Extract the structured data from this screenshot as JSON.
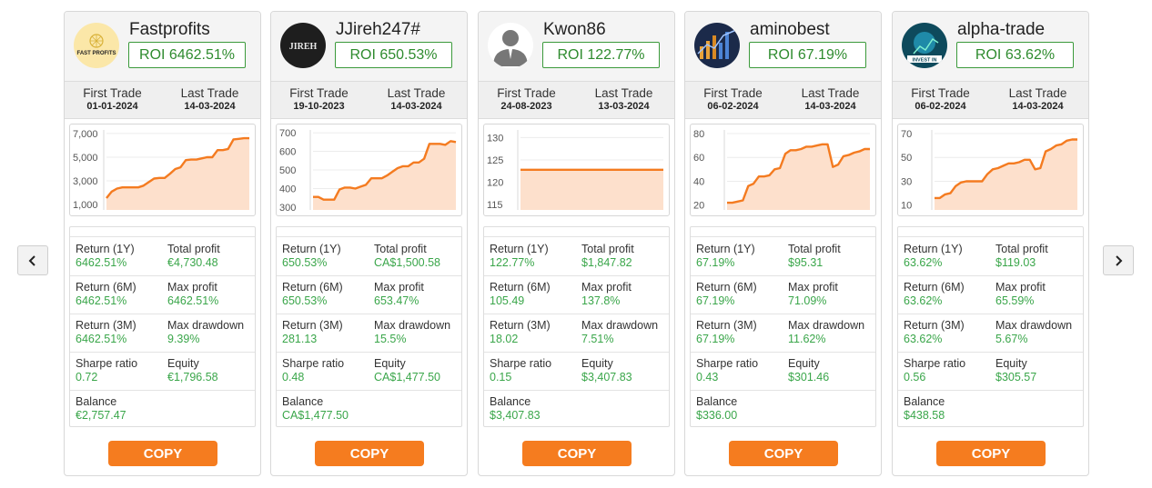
{
  "navigation": {
    "prev_icon": "chevron-left-icon",
    "next_icon": "chevron-right-icon"
  },
  "labels": {
    "first_trade": "First Trade",
    "last_trade": "Last Trade",
    "return_1y": "Return (1Y)",
    "total_profit": "Total profit",
    "return_6m": "Return (6M)",
    "max_profit": "Max profit",
    "return_3m": "Return (3M)",
    "max_drawdown": "Max drawdown",
    "sharpe_ratio": "Sharpe ratio",
    "equity": "Equity",
    "balance": "Balance",
    "copy": "COPY"
  },
  "colors": {
    "accent": "#f57c1f",
    "positive": "#3aa64a",
    "line": "#f47b20",
    "fill": "#fde0cc"
  },
  "traders": [
    {
      "name": "Fastprofits",
      "avatar": "fast-profits-logo",
      "avatar_text": "FAST PROFITS",
      "roi": "ROI 6462.51%",
      "first_trade": "01-01-2024",
      "last_trade": "14-03-2024",
      "stats": {
        "return_1y": "6462.51%",
        "total_profit": "€4,730.48",
        "return_6m": "6462.51%",
        "max_profit": "6462.51%",
        "return_3m": "6462.51%",
        "max_drawdown": "9.39%",
        "sharpe_ratio": "0.72",
        "equity": "€1,796.58",
        "balance": "€2,757.47"
      },
      "chart_data": {
        "type": "area",
        "y_ticks": [
          "7,000",
          "5,000",
          "3,000",
          "1,000"
        ],
        "ylim": [
          550,
          7300
        ],
        "x": [
          0,
          3,
          6,
          9,
          12,
          15,
          18,
          21,
          24,
          27,
          30,
          33,
          36,
          39,
          42,
          45,
          48,
          51,
          54,
          57,
          60,
          63,
          66,
          69,
          72,
          75,
          78,
          81
        ],
        "values": [
          1550,
          2100,
          2350,
          2450,
          2450,
          2450,
          2450,
          2600,
          2900,
          3200,
          3250,
          3250,
          3600,
          4000,
          4150,
          4750,
          4800,
          4800,
          4900,
          5000,
          5000,
          5600,
          5600,
          5700,
          6500,
          6550,
          6600,
          6600
        ]
      }
    },
    {
      "name": "JJireh247#",
      "avatar": "jireh-logo",
      "avatar_text": "JIREH",
      "roi": "ROI 650.53%",
      "first_trade": "19-10-2023",
      "last_trade": "14-03-2024",
      "stats": {
        "return_1y": "650.53%",
        "total_profit": "CA$1,500.58",
        "return_6m": "650.53%",
        "max_profit": "653.47%",
        "return_3m": "281.13",
        "max_drawdown": "15.5%",
        "sharpe_ratio": "0.48",
        "equity": "CA$1,477.50",
        "balance": "CA$1,477.50"
      },
      "chart_data": {
        "type": "area",
        "y_ticks": [
          "700",
          "600",
          "500",
          "400",
          "300"
        ],
        "ylim": [
          285,
          715
        ],
        "x": [
          0,
          3,
          6,
          9,
          12,
          15,
          18,
          21,
          24,
          27,
          30,
          33,
          36,
          39,
          42,
          45,
          48,
          51,
          54,
          57,
          60,
          63,
          66,
          69,
          72,
          75,
          78,
          81
        ],
        "values": [
          355,
          355,
          340,
          340,
          340,
          395,
          405,
          405,
          400,
          410,
          420,
          455,
          455,
          455,
          470,
          490,
          510,
          520,
          520,
          540,
          540,
          560,
          640,
          640,
          640,
          635,
          655,
          650
        ]
      }
    },
    {
      "name": "Kwon86",
      "avatar": "user-silhouette-icon",
      "avatar_text": "",
      "roi": "ROI 122.77%",
      "first_trade": "24-08-2023",
      "last_trade": "13-03-2024",
      "stats": {
        "return_1y": "122.77%",
        "total_profit": "$1,847.82",
        "return_6m": "105.49",
        "max_profit": "137.8%",
        "return_3m": "18.02",
        "max_drawdown": "7.51%",
        "sharpe_ratio": "0.15",
        "equity": "$3,407.83",
        "balance": "$3,407.83"
      },
      "chart_data": {
        "type": "area",
        "y_ticks": [
          "130",
          "125",
          "120",
          "115"
        ],
        "ylim": [
          113.8,
          131.7
        ],
        "x": [
          0,
          81
        ],
        "values": [
          122.8,
          122.8
        ]
      }
    },
    {
      "name": "aminobest",
      "avatar": "trading-chart-avatar",
      "avatar_text": "",
      "roi": "ROI 67.19%",
      "first_trade": "06-02-2024",
      "last_trade": "14-03-2024",
      "stats": {
        "return_1y": "67.19%",
        "total_profit": "$95.31",
        "return_6m": "67.19%",
        "max_profit": "71.09%",
        "return_3m": "67.19%",
        "max_drawdown": "11.62%",
        "sharpe_ratio": "0.43",
        "equity": "$301.46",
        "balance": "$336.00"
      },
      "chart_data": {
        "type": "area",
        "y_ticks": [
          "80",
          "60",
          "40",
          "20"
        ],
        "ylim": [
          16,
          83
        ],
        "x": [
          0,
          3,
          6,
          9,
          12,
          15,
          18,
          21,
          24,
          27,
          30,
          33,
          36,
          39,
          42,
          45,
          48,
          51,
          54,
          57,
          60,
          63,
          66,
          69,
          72,
          75,
          78,
          81
        ],
        "values": [
          22,
          22,
          23,
          24,
          36,
          38,
          44,
          44,
          45,
          50,
          51,
          63,
          66,
          66,
          67,
          69,
          69,
          70,
          71,
          71,
          52,
          54,
          61,
          62,
          64,
          65,
          67,
          67
        ]
      }
    },
    {
      "name": "alpha-trade",
      "avatar": "invest-in-avatar",
      "avatar_text": "INVEST IN",
      "roi": "ROI 63.62%",
      "first_trade": "06-02-2024",
      "last_trade": "14-03-2024",
      "stats": {
        "return_1y": "63.62%",
        "total_profit": "$119.03",
        "return_6m": "63.62%",
        "max_profit": "65.59%",
        "return_3m": "63.62%",
        "max_drawdown": "5.67%",
        "sharpe_ratio": "0.56",
        "equity": "$305.57",
        "balance": "$438.58"
      },
      "chart_data": {
        "type": "area",
        "y_ticks": [
          "70",
          "50",
          "30",
          "10"
        ],
        "ylim": [
          6,
          73
        ],
        "x": [
          0,
          3,
          6,
          9,
          12,
          15,
          18,
          21,
          24,
          27,
          30,
          33,
          36,
          39,
          42,
          45,
          48,
          51,
          54,
          57,
          60,
          63,
          66,
          69,
          72,
          75,
          78,
          81
        ],
        "values": [
          16,
          16,
          19,
          20,
          26,
          29,
          30,
          30,
          30,
          30,
          36,
          40,
          41,
          43,
          45,
          45,
          46,
          48,
          48,
          40,
          41,
          55,
          57,
          60,
          61,
          64,
          65,
          65
        ]
      }
    }
  ]
}
